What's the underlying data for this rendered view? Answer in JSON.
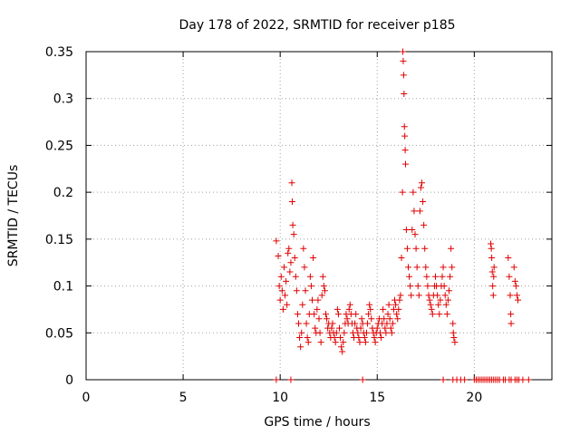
{
  "chart_data": {
    "type": "scatter",
    "title": "Day 178 of 2022, SRMTID for receiver p185",
    "xlabel": "GPS time / hours",
    "ylabel": "SRMTID / TECUs",
    "xlim": [
      0,
      24
    ],
    "ylim": [
      0,
      0.35
    ],
    "xticks": [
      0,
      5,
      10,
      15,
      20
    ],
    "xtick_labels": [
      "0",
      "5",
      "10",
      "15",
      "20"
    ],
    "yticks": [
      0,
      0.05,
      0.1,
      0.15,
      0.2,
      0.25,
      0.3,
      0.35
    ],
    "ytick_labels": [
      "0",
      "0.05",
      "0.1",
      "0.15",
      "0.2",
      "0.25",
      "0.3",
      "0.35"
    ],
    "grid": true,
    "marker": "+",
    "marker_color": "#e00000",
    "series": [
      {
        "name": "SRMTID",
        "points": [
          [
            9.8,
            0.148
          ],
          [
            9.9,
            0.132
          ],
          [
            9.95,
            0.1
          ],
          [
            10.0,
            0.085
          ],
          [
            10.05,
            0.11
          ],
          [
            10.1,
            0.095
          ],
          [
            10.15,
            0.075
          ],
          [
            10.2,
            0.12
          ],
          [
            10.25,
            0.09
          ],
          [
            10.3,
            0.105
          ],
          [
            10.35,
            0.08
          ],
          [
            10.4,
            0.135
          ],
          [
            10.45,
            0.14
          ],
          [
            10.5,
            0.115
          ],
          [
            10.55,
            0.125
          ],
          [
            10.6,
            0.21
          ],
          [
            10.62,
            0.19
          ],
          [
            10.65,
            0.165
          ],
          [
            10.7,
            0.155
          ],
          [
            10.75,
            0.13
          ],
          [
            10.8,
            0.11
          ],
          [
            10.85,
            0.095
          ],
          [
            10.9,
            0.07
          ],
          [
            10.95,
            0.06
          ],
          [
            11.0,
            0.045
          ],
          [
            11.05,
            0.035
          ],
          [
            11.1,
            0.05
          ],
          [
            11.15,
            0.08
          ],
          [
            11.2,
            0.14
          ],
          [
            11.25,
            0.12
          ],
          [
            11.3,
            0.095
          ],
          [
            11.35,
            0.06
          ],
          [
            11.4,
            0.045
          ],
          [
            11.45,
            0.04
          ],
          [
            11.5,
            0.07
          ],
          [
            11.55,
            0.11
          ],
          [
            11.6,
            0.1
          ],
          [
            11.65,
            0.085
          ],
          [
            11.7,
            0.13
          ],
          [
            11.75,
            0.07
          ],
          [
            11.8,
            0.055
          ],
          [
            11.85,
            0.05
          ],
          [
            11.9,
            0.075
          ],
          [
            11.95,
            0.085
          ],
          [
            12.0,
            0.065
          ],
          [
            12.05,
            0.05
          ],
          [
            12.1,
            0.04
          ],
          [
            12.15,
            0.09
          ],
          [
            12.2,
            0.11
          ],
          [
            12.25,
            0.1
          ],
          [
            12.3,
            0.095
          ],
          [
            12.35,
            0.07
          ],
          [
            12.4,
            0.065
          ],
          [
            12.45,
            0.055
          ],
          [
            12.5,
            0.06
          ],
          [
            12.55,
            0.05
          ],
          [
            12.6,
            0.045
          ],
          [
            12.65,
            0.055
          ],
          [
            12.7,
            0.06
          ],
          [
            12.75,
            0.05
          ],
          [
            12.8,
            0.045
          ],
          [
            12.85,
            0.04
          ],
          [
            12.9,
            0.05
          ],
          [
            12.95,
            0.075
          ],
          [
            13.0,
            0.07
          ],
          [
            13.05,
            0.055
          ],
          [
            13.1,
            0.045
          ],
          [
            13.15,
            0.035
          ],
          [
            13.2,
            0.03
          ],
          [
            13.25,
            0.04
          ],
          [
            13.3,
            0.05
          ],
          [
            13.35,
            0.06
          ],
          [
            13.4,
            0.07
          ],
          [
            13.45,
            0.065
          ],
          [
            13.5,
            0.06
          ],
          [
            13.55,
            0.075
          ],
          [
            13.6,
            0.08
          ],
          [
            13.65,
            0.07
          ],
          [
            13.7,
            0.06
          ],
          [
            13.75,
            0.05
          ],
          [
            13.8,
            0.045
          ],
          [
            13.85,
            0.06
          ],
          [
            13.9,
            0.07
          ],
          [
            13.95,
            0.055
          ],
          [
            14.0,
            0.05
          ],
          [
            14.05,
            0.045
          ],
          [
            14.1,
            0.04
          ],
          [
            14.15,
            0.055
          ],
          [
            14.2,
            0.065
          ],
          [
            14.25,
            0.06
          ],
          [
            14.3,
            0.05
          ],
          [
            14.35,
            0.045
          ],
          [
            14.4,
            0.04
          ],
          [
            14.45,
            0.05
          ],
          [
            14.5,
            0.06
          ],
          [
            14.55,
            0.07
          ],
          [
            14.6,
            0.08
          ],
          [
            14.65,
            0.075
          ],
          [
            14.7,
            0.065
          ],
          [
            14.75,
            0.055
          ],
          [
            14.8,
            0.05
          ],
          [
            14.85,
            0.045
          ],
          [
            14.9,
            0.04
          ],
          [
            14.95,
            0.05
          ],
          [
            15.0,
            0.055
          ],
          [
            15.05,
            0.06
          ],
          [
            15.1,
            0.065
          ],
          [
            15.15,
            0.05
          ],
          [
            15.2,
            0.045
          ],
          [
            15.25,
            0.06
          ],
          [
            15.3,
            0.075
          ],
          [
            15.35,
            0.065
          ],
          [
            15.4,
            0.055
          ],
          [
            15.45,
            0.05
          ],
          [
            15.5,
            0.06
          ],
          [
            15.55,
            0.07
          ],
          [
            15.6,
            0.08
          ],
          [
            15.65,
            0.065
          ],
          [
            15.7,
            0.055
          ],
          [
            15.75,
            0.05
          ],
          [
            15.8,
            0.06
          ],
          [
            15.85,
            0.075
          ],
          [
            15.9,
            0.085
          ],
          [
            15.95,
            0.08
          ],
          [
            16.0,
            0.07
          ],
          [
            16.05,
            0.065
          ],
          [
            16.1,
            0.075
          ],
          [
            16.15,
            0.085
          ],
          [
            16.2,
            0.09
          ],
          [
            16.25,
            0.13
          ],
          [
            16.3,
            0.2
          ],
          [
            16.32,
            0.35
          ],
          [
            16.34,
            0.34
          ],
          [
            16.36,
            0.325
          ],
          [
            16.38,
            0.305
          ],
          [
            16.4,
            0.27
          ],
          [
            16.42,
            0.26
          ],
          [
            16.44,
            0.245
          ],
          [
            16.46,
            0.23
          ],
          [
            16.5,
            0.16
          ],
          [
            16.55,
            0.14
          ],
          [
            16.6,
            0.12
          ],
          [
            16.65,
            0.11
          ],
          [
            16.7,
            0.1
          ],
          [
            16.75,
            0.09
          ],
          [
            16.8,
            0.16
          ],
          [
            16.85,
            0.2
          ],
          [
            16.9,
            0.18
          ],
          [
            16.95,
            0.155
          ],
          [
            17.0,
            0.14
          ],
          [
            17.05,
            0.12
          ],
          [
            17.1,
            0.1
          ],
          [
            17.15,
            0.09
          ],
          [
            17.2,
            0.18
          ],
          [
            17.25,
            0.205
          ],
          [
            17.3,
            0.21
          ],
          [
            17.35,
            0.19
          ],
          [
            17.4,
            0.165
          ],
          [
            17.45,
            0.14
          ],
          [
            17.5,
            0.12
          ],
          [
            17.55,
            0.11
          ],
          [
            17.6,
            0.1
          ],
          [
            17.65,
            0.09
          ],
          [
            17.7,
            0.085
          ],
          [
            17.75,
            0.08
          ],
          [
            17.8,
            0.075
          ],
          [
            17.85,
            0.07
          ],
          [
            17.9,
            0.09
          ],
          [
            17.95,
            0.1
          ],
          [
            18.0,
            0.11
          ],
          [
            18.05,
            0.1
          ],
          [
            18.1,
            0.09
          ],
          [
            18.15,
            0.08
          ],
          [
            18.2,
            0.07
          ],
          [
            18.25,
            0.085
          ],
          [
            18.3,
            0.1
          ],
          [
            18.35,
            0.11
          ],
          [
            18.4,
            0.12
          ],
          [
            18.45,
            0.1
          ],
          [
            18.5,
            0.09
          ],
          [
            18.55,
            0.08
          ],
          [
            18.6,
            0.07
          ],
          [
            18.65,
            0.085
          ],
          [
            18.7,
            0.095
          ],
          [
            18.75,
            0.11
          ],
          [
            18.8,
            0.14
          ],
          [
            18.85,
            0.12
          ],
          [
            18.9,
            0.06
          ],
          [
            18.92,
            0.05
          ],
          [
            18.95,
            0.045
          ],
          [
            19.0,
            0.04
          ],
          [
            20.85,
            0.145
          ],
          [
            20.88,
            0.14
          ],
          [
            20.9,
            0.13
          ],
          [
            20.93,
            0.115
          ],
          [
            20.95,
            0.1
          ],
          [
            20.98,
            0.09
          ],
          [
            21.0,
            0.11
          ],
          [
            21.02,
            0.12
          ],
          [
            21.75,
            0.13
          ],
          [
            21.8,
            0.11
          ],
          [
            21.85,
            0.09
          ],
          [
            21.88,
            0.07
          ],
          [
            21.9,
            0.06
          ],
          [
            22.05,
            0.12
          ],
          [
            22.1,
            0.105
          ],
          [
            22.15,
            0.1
          ],
          [
            22.2,
            0.09
          ],
          [
            22.25,
            0.085
          ],
          [
            9.8,
            0
          ],
          [
            10.55,
            0
          ],
          [
            14.25,
            0
          ],
          [
            18.4,
            0
          ],
          [
            18.9,
            0
          ],
          [
            19.1,
            0
          ],
          [
            19.3,
            0
          ],
          [
            19.5,
            0
          ],
          [
            20.0,
            0
          ],
          [
            20.1,
            0
          ],
          [
            20.2,
            0
          ],
          [
            20.3,
            0
          ],
          [
            20.4,
            0
          ],
          [
            20.5,
            0
          ],
          [
            20.6,
            0
          ],
          [
            20.7,
            0
          ],
          [
            20.8,
            0
          ],
          [
            20.9,
            0
          ],
          [
            21.0,
            0
          ],
          [
            21.1,
            0
          ],
          [
            21.2,
            0
          ],
          [
            21.3,
            0
          ],
          [
            21.5,
            0
          ],
          [
            21.6,
            0
          ],
          [
            21.8,
            0
          ],
          [
            21.9,
            0
          ],
          [
            22.1,
            0
          ],
          [
            22.2,
            0
          ],
          [
            22.3,
            0
          ],
          [
            22.5,
            0
          ],
          [
            22.8,
            0
          ]
        ]
      }
    ]
  }
}
